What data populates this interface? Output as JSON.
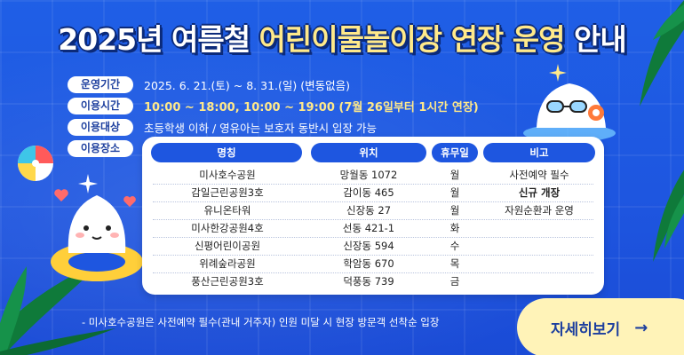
{
  "title": {
    "part1": "2025년 여름철 ",
    "part2": "어린이물놀이장",
    "part3": " 연장 운영",
    "part4": " 안내"
  },
  "info": [
    {
      "tag": "운영기간",
      "value": "2025. 6. 21.(토) ~ 8. 31.(일)  (변동없음)",
      "style": "normal"
    },
    {
      "tag": "이용시간",
      "value": "10:00 ~ 18:00,  10:00 ~ 19:00 (7월 26일부터 1시간 연장)",
      "style": "yellow"
    },
    {
      "tag": "이용대상",
      "value": "초등학생 이하 / 영유아는 보호자 동반시 입장 가능",
      "style": "normal"
    },
    {
      "tag": "이용장소",
      "value": "",
      "style": "normal"
    }
  ],
  "table": {
    "headers": [
      "명칭",
      "위치",
      "휴무일",
      "비고"
    ],
    "rows": [
      [
        "미사호수공원",
        "망월동 1072",
        "월",
        "사전예약 필수"
      ],
      [
        "감일근린공원3호",
        "감이동 465",
        "월",
        "신규 개장"
      ],
      [
        "유니온타워",
        "신장동 27",
        "월",
        "자원순환과 운영"
      ],
      [
        "미사한강공원4호",
        "선동 421-1",
        "화",
        ""
      ],
      [
        "신평어린이공원",
        "신장동 594",
        "수",
        ""
      ],
      [
        "위례숲라공원",
        "학암동 670",
        "목",
        ""
      ],
      [
        "풍산근린공원3호",
        "덕풍동 739",
        "금",
        ""
      ]
    ]
  },
  "footnote": "- 미사호수공원은 사전예약 필수(관내 거주자) 인원 미달 시 현장 방문객 선착순 입장",
  "cta": {
    "label": "자세히보기",
    "arrow": "→"
  },
  "colors": {
    "background": "#1e56e0",
    "highlight": "#ffe98a",
    "cta_bg": "#fff3b8",
    "header_pill": "#1e56e0"
  },
  "icons": [
    "palm-leaf-icon",
    "beach-ball-icon",
    "swimming-mascot-icon",
    "floating-mascot-icon",
    "heart-icon",
    "sparkle-icon"
  ]
}
